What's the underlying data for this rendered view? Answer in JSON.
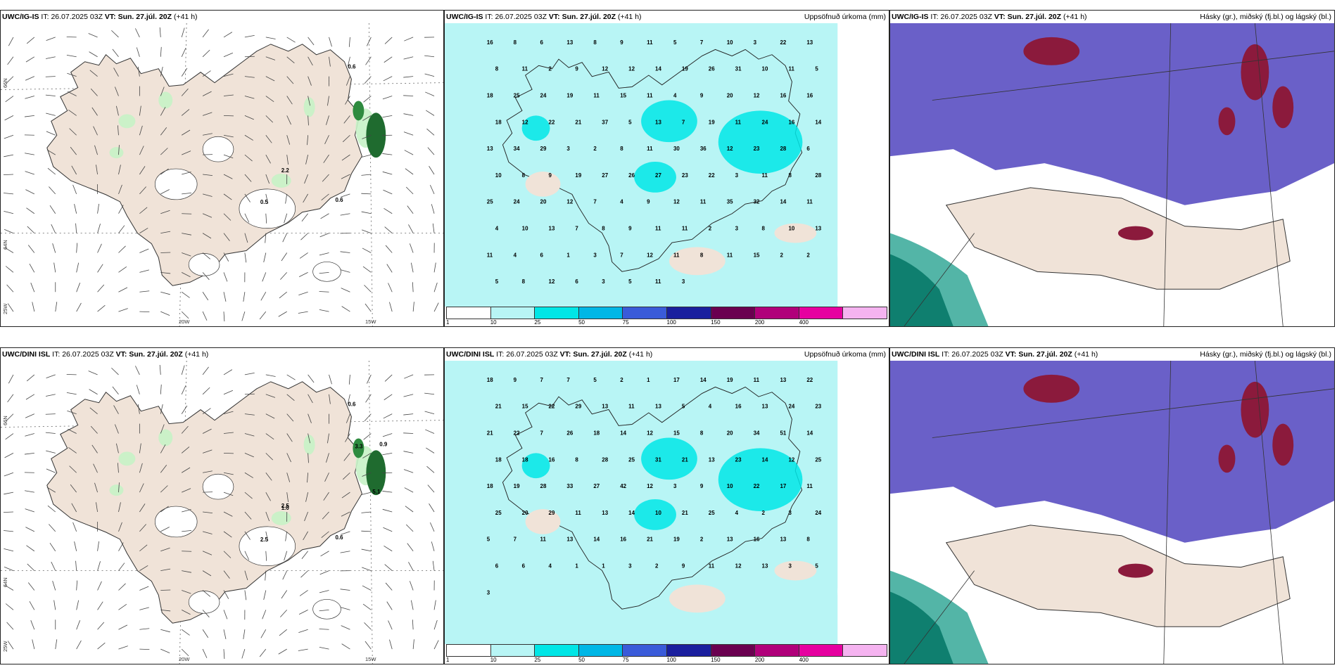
{
  "rows": [
    {
      "model": "UWC/IG-IS",
      "it_label": "IT:",
      "it_value": "26.07.2025 03Z",
      "vt_label": "VT:",
      "vt_value": "Sun. 27.júl. 20Z",
      "lead": "(+41 h)",
      "wind_values": [
        "0.6",
        "0.5",
        "2.2",
        "0.6"
      ],
      "precip_values": [
        "16",
        "8",
        "6",
        "13",
        "8",
        "9",
        "11",
        "5",
        "7",
        "10",
        "3",
        "22",
        "13",
        "8",
        "11",
        "2",
        "9",
        "12",
        "12",
        "14",
        "19",
        "26",
        "31",
        "10",
        "11",
        "5",
        "18",
        "25",
        "24",
        "19",
        "11",
        "15",
        "11",
        "4",
        "9",
        "20",
        "12",
        "16",
        "16",
        "18",
        "12",
        "22",
        "21",
        "37",
        "5",
        "13",
        "7",
        "19",
        "11",
        "24",
        "16",
        "14",
        "13",
        "34",
        "29",
        "3",
        "2",
        "8",
        "11",
        "30",
        "36",
        "12",
        "23",
        "28",
        "6",
        "10",
        "8",
        "9",
        "19",
        "27",
        "26",
        "27",
        "23",
        "22",
        "3",
        "11",
        "8",
        "28",
        "25",
        "24",
        "20",
        "12",
        "7",
        "4",
        "9",
        "12",
        "11",
        "35",
        "32",
        "14",
        "11",
        "4",
        "10",
        "13",
        "7",
        "8",
        "9",
        "11",
        "11",
        "2",
        "3",
        "8",
        "10",
        "13",
        "11",
        "4",
        "6",
        "1",
        "3",
        "7",
        "12",
        "11",
        "8",
        "11",
        "15",
        "2",
        "2",
        "5",
        "8",
        "12",
        "6",
        "3",
        "5",
        "11",
        "3"
      ]
    },
    {
      "model": "UWC/DINI ISL",
      "it_label": "IT:",
      "it_value": "26.07.2025 03Z",
      "vt_label": "VT:",
      "vt_value": "Sun. 27.júl. 20Z",
      "lead": "(+41 h)",
      "wind_values": [
        "0.6",
        "2.5",
        "1.0",
        "0.6",
        "0.9",
        "2.5",
        "3.3",
        "5.1"
      ],
      "precip_values": [
        "18",
        "9",
        "7",
        "7",
        "5",
        "2",
        "1",
        "17",
        "14",
        "19",
        "11",
        "13",
        "22",
        "21",
        "15",
        "22",
        "29",
        "13",
        "11",
        "13",
        "5",
        "4",
        "16",
        "13",
        "24",
        "23",
        "21",
        "22",
        "7",
        "26",
        "18",
        "14",
        "12",
        "15",
        "8",
        "20",
        "34",
        "51",
        "14",
        "18",
        "18",
        "16",
        "8",
        "28",
        "25",
        "31",
        "21",
        "13",
        "23",
        "14",
        "12",
        "25",
        "18",
        "19",
        "28",
        "33",
        "27",
        "42",
        "12",
        "3",
        "9",
        "10",
        "22",
        "17",
        "11",
        "25",
        "20",
        "29",
        "11",
        "13",
        "14",
        "10",
        "21",
        "25",
        "4",
        "2",
        "3",
        "24",
        "5",
        "7",
        "11",
        "13",
        "14",
        "16",
        "21",
        "19",
        "2",
        "13",
        "16",
        "13",
        "8",
        "6",
        "6",
        "4",
        "1",
        "1",
        "3",
        "2",
        "9",
        "11",
        "12",
        "13",
        "3",
        "5",
        "3"
      ]
    }
  ],
  "precip_title": "Uppsöfnuð úrkoma (mm)",
  "cloud_title": "Hásky (gr.), miðský (fj.bl.) og lágský (bl.)",
  "colorbar": {
    "labels": [
      "1",
      "10",
      "25",
      "50",
      "75",
      "100",
      "150",
      "200",
      "400"
    ],
    "colors": [
      "#ffffff",
      "#b8f5f5",
      "#00e6e6",
      "#00b7e6",
      "#3a5bd9",
      "#1a1f9e",
      "#6a0050",
      "#b0007a",
      "#e600a0",
      "#f5b3f0"
    ]
  },
  "axes": {
    "lat_labels": [
      "66N",
      "64N",
      "25W"
    ],
    "lon_labels": [
      "20W",
      "15W"
    ]
  },
  "colors": {
    "land": "#f0e3d8",
    "precip_light": "#b8f5f5",
    "precip_mid": "#00e6e6",
    "cloud_high": "#6a60c8",
    "cloud_mid": "#8b1a3c"
  }
}
